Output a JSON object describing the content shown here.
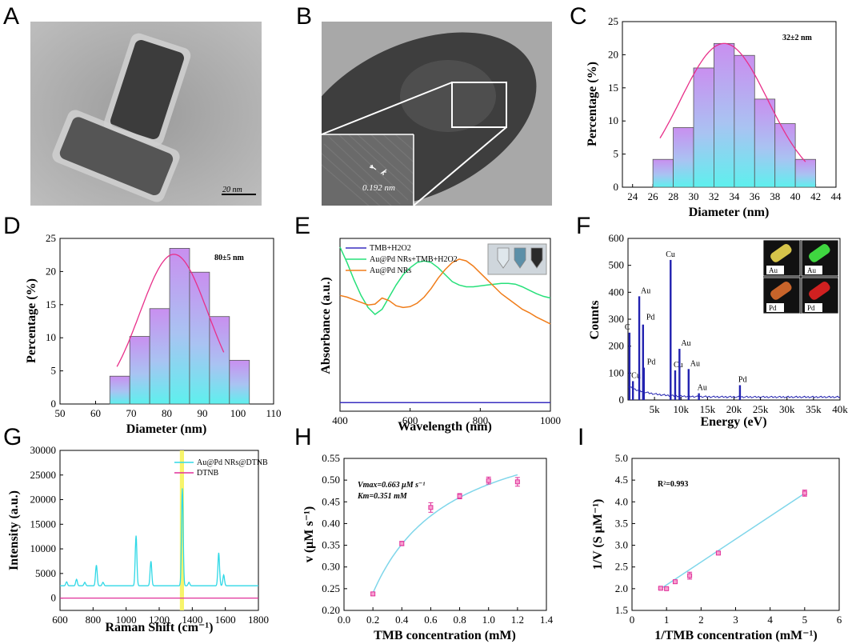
{
  "panel_labels": [
    "A",
    "B",
    "C",
    "D",
    "E",
    "F",
    "G",
    "H",
    "I"
  ],
  "panel_a": {
    "scale_bar": "20 nm"
  },
  "panel_b": {
    "d_spacing": "0.192 nm"
  },
  "chart_data": [
    {
      "id": "C",
      "type": "bar",
      "title": "",
      "xlabel": "Diameter (nm)",
      "ylabel": "Percentage (%)",
      "xlim": [
        23,
        44
      ],
      "ylim": [
        0,
        25
      ],
      "xticks": [
        24,
        26,
        28,
        30,
        32,
        34,
        36,
        38,
        40,
        42,
        44
      ],
      "yticks": [
        0,
        5,
        10,
        15,
        20,
        25
      ],
      "bin_start": 26,
      "bin_width": 2,
      "values": [
        4.2,
        9.0,
        18.0,
        21.7,
        19.9,
        13.3,
        9.6,
        4.2
      ],
      "fit": {
        "mean": 33,
        "sd": 4.3,
        "peak": 21.7,
        "from": 26.7,
        "to": 41
      },
      "annotation": "32±2 nm"
    },
    {
      "id": "D",
      "type": "bar",
      "title": "",
      "xlabel": "Diameter (nm)",
      "ylabel": "Percentage (%)",
      "xlim": [
        50,
        110
      ],
      "ylim": [
        0,
        25
      ],
      "xticks": [
        50,
        60,
        70,
        80,
        90,
        100,
        110
      ],
      "yticks": [
        0,
        5,
        10,
        15,
        20,
        25
      ],
      "bin_start": 64,
      "bin_width": 5.6,
      "values": [
        4.2,
        10.2,
        14.4,
        23.5,
        19.9,
        13.2,
        6.6
      ],
      "fit": {
        "mean": 82,
        "sd": 9.6,
        "peak": 22.6,
        "from": 66,
        "to": 96
      },
      "annotation": "80±5 nm"
    },
    {
      "id": "E",
      "type": "line",
      "xlabel": "Wavelength (nm)",
      "ylabel": "Absorbance (a.u.)",
      "xlim": [
        400,
        1000
      ],
      "xticks": [
        400,
        600,
        800,
        1000
      ],
      "series": [
        {
          "name": "TMB+H2O2",
          "color": "#3a2fc0",
          "x": [
            400,
            1000
          ],
          "y": [
            0.05,
            0.05
          ]
        },
        {
          "name": "Au@Pd NRs+TMB+H2O2",
          "color": "#27e07a",
          "x": [
            400,
            420,
            440,
            460,
            480,
            500,
            520,
            540,
            560,
            580,
            600,
            620,
            640,
            660,
            680,
            700,
            720,
            740,
            760,
            780,
            800,
            820,
            840,
            860,
            880,
            900,
            920,
            940,
            960,
            980,
            1000
          ],
          "y": [
            0.95,
            0.86,
            0.76,
            0.67,
            0.6,
            0.56,
            0.59,
            0.66,
            0.73,
            0.79,
            0.83,
            0.86,
            0.87,
            0.86,
            0.83,
            0.79,
            0.75,
            0.73,
            0.72,
            0.72,
            0.725,
            0.73,
            0.735,
            0.74,
            0.74,
            0.735,
            0.72,
            0.7,
            0.68,
            0.665,
            0.655
          ]
        },
        {
          "name": "Au@Pd NRs",
          "color": "#f07d1a",
          "x": [
            400,
            420,
            440,
            460,
            480,
            500,
            520,
            540,
            560,
            580,
            600,
            620,
            640,
            660,
            680,
            700,
            720,
            740,
            760,
            780,
            800,
            820,
            840,
            860,
            880,
            900,
            920,
            940,
            960,
            980,
            1000
          ],
          "y": [
            0.67,
            0.66,
            0.645,
            0.63,
            0.615,
            0.62,
            0.655,
            0.64,
            0.61,
            0.6,
            0.605,
            0.625,
            0.66,
            0.71,
            0.77,
            0.82,
            0.86,
            0.88,
            0.87,
            0.84,
            0.8,
            0.76,
            0.72,
            0.68,
            0.65,
            0.62,
            0.59,
            0.57,
            0.545,
            0.525,
            0.505
          ]
        }
      ],
      "legend": [
        "TMB+H2O2",
        "Au@Pd NRs+TMB+H2O2",
        "Au@Pd NRs"
      ]
    },
    {
      "id": "F",
      "type": "line",
      "xlabel": "Energy (eV)",
      "ylabel": "Counts",
      "xlim": [
        0,
        40000
      ],
      "ylim": [
        0,
        600
      ],
      "xticks": [
        "",
        "5k",
        "10k",
        "15k",
        "20k",
        "25k",
        "30k",
        "35k",
        "40k"
      ],
      "yticks": [
        0,
        100,
        200,
        300,
        400,
        500,
        600
      ],
      "peaks": [
        {
          "label": "C",
          "energy": 280,
          "counts": 250
        },
        {
          "label": "Cu",
          "energy": 930,
          "counts": 70
        },
        {
          "label": "Au",
          "energy": 2120,
          "counts": 385
        },
        {
          "label": "Pd",
          "energy": 2840,
          "counts": 280
        },
        {
          "label": "Pd",
          "energy": 2990,
          "counts": 120
        },
        {
          "label": "Cu",
          "energy": 8040,
          "counts": 520
        },
        {
          "label": "Cu",
          "energy": 8900,
          "counts": 110
        },
        {
          "label": "Au",
          "energy": 9710,
          "counts": 190
        },
        {
          "label": "Au",
          "energy": 11440,
          "counts": 115
        },
        {
          "label": "Au",
          "energy": 13380,
          "counts": 25
        },
        {
          "label": "Pd",
          "energy": 21120,
          "counts": 55
        }
      ],
      "peak_labels": [
        "C",
        "Cu",
        "Au",
        "Pd",
        "Pd",
        "Cu",
        "Cu",
        "Au",
        "Au",
        "Au",
        "Pd"
      ],
      "map_labels": [
        "Au",
        "Au",
        "Pd",
        "Pd"
      ]
    },
    {
      "id": "G",
      "type": "line",
      "xlabel": "Raman Shift (cm⁻¹)",
      "ylabel": "Intensity (a.u.)",
      "xlim": [
        600,
        1800
      ],
      "ylim": [
        -2500,
        30000
      ],
      "xticks": [
        600,
        800,
        1000,
        1200,
        1400,
        1600,
        1800
      ],
      "yticks": [
        0,
        5000,
        10000,
        15000,
        20000,
        25000,
        30000
      ],
      "series": [
        {
          "name": "Au@Pd NRs@DTNB",
          "color": "#30d8e6",
          "baseline": 2500,
          "peaks": [
            [
              640,
              800
            ],
            [
              700,
              1300
            ],
            [
              750,
              700
            ],
            [
              820,
              4200
            ],
            [
              860,
              700
            ],
            [
              1060,
              10200
            ],
            [
              1150,
              5000
            ],
            [
              1340,
              19800
            ],
            [
              1380,
              700
            ],
            [
              1560,
              6700
            ],
            [
              1590,
              2200
            ]
          ]
        },
        {
          "name": "DTNB",
          "color": "#e0309a",
          "baseline": 0,
          "peaks": []
        }
      ],
      "highlight": [
        1325,
        1350
      ],
      "legend": [
        "Au@Pd NRs@DTNB",
        "DTNB"
      ]
    },
    {
      "id": "H",
      "type": "scatter",
      "xlabel": "TMB concentration (mM)",
      "ylabel": "v (μM s⁻¹)",
      "xlim": [
        0,
        1.4
      ],
      "ylim": [
        0.2,
        0.55
      ],
      "xticks": [
        0.0,
        0.2,
        0.4,
        0.6,
        0.8,
        1.0,
        1.2,
        1.4
      ],
      "yticks": [
        0.2,
        0.25,
        0.3,
        0.35,
        0.4,
        0.45,
        0.5,
        0.55
      ],
      "x": [
        0.2,
        0.4,
        0.6,
        0.8,
        1.0,
        1.2
      ],
      "y": [
        0.238,
        0.354,
        0.437,
        0.463,
        0.499,
        0.496
      ],
      "err": [
        0.004,
        0.005,
        0.011,
        0.006,
        0.008,
        0.01
      ],
      "fit": {
        "model": "Michaelis-Menten",
        "vmax": 0.663,
        "km": 0.351
      },
      "annotation": [
        "Vmax=0.663 μM s⁻¹",
        "Km=0.351 mM"
      ]
    },
    {
      "id": "I",
      "type": "scatter",
      "xlabel": "1/TMB concentration (mM⁻¹)",
      "ylabel": "1/V (S μM⁻¹)",
      "xlim": [
        0,
        6
      ],
      "ylim": [
        1.5,
        5.0
      ],
      "xticks": [
        0,
        1,
        2,
        3,
        4,
        5,
        6
      ],
      "yticks": [
        1.5,
        2.0,
        2.5,
        3.0,
        3.5,
        4.0,
        4.5,
        5.0
      ],
      "x": [
        0.83,
        1.0,
        1.25,
        1.67,
        2.5,
        5.0
      ],
      "y": [
        2.01,
        2.0,
        2.16,
        2.3,
        2.82,
        4.2
      ],
      "err": [
        0.02,
        0.02,
        0.03,
        0.08,
        0.04,
        0.07
      ],
      "fit": {
        "slope": 0.527,
        "intercept": 1.56,
        "from": 0.8,
        "to": 5.0
      },
      "annotation": "R²=0.993"
    }
  ]
}
